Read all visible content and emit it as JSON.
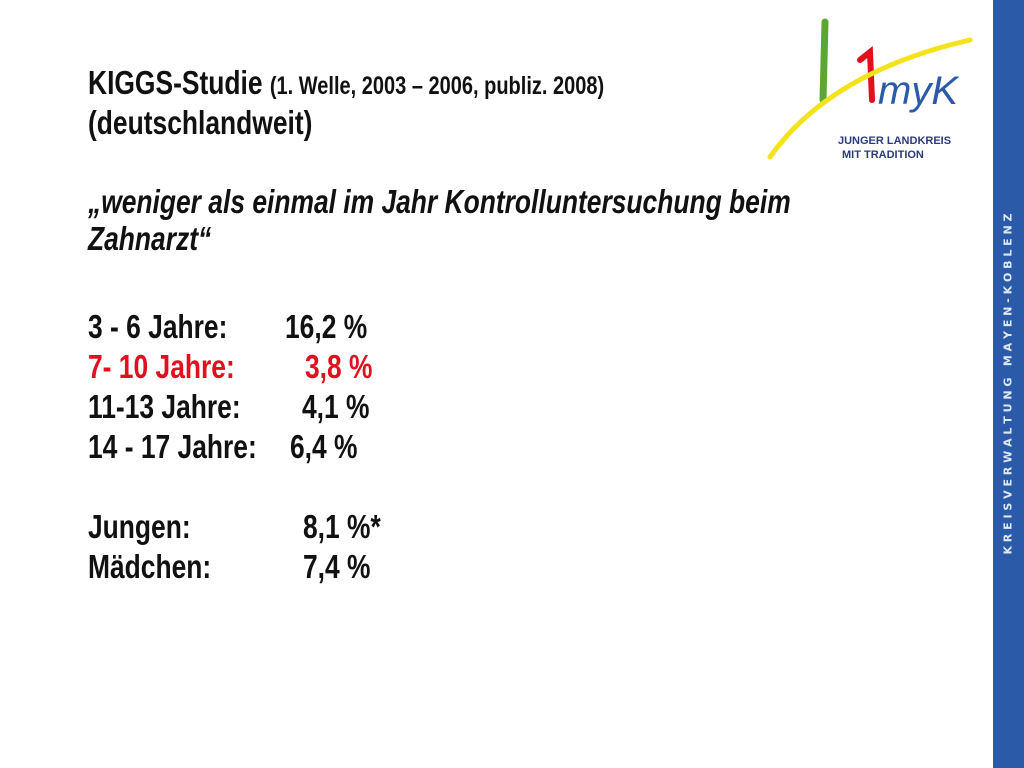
{
  "header": {
    "title": "KIGGS-Studie",
    "subtitle": "(1. Welle, 2003 – 2006, publiz. 2008)",
    "scope": "(deutschlandweit)"
  },
  "quote": [
    "„weniger als einmal im Jahr Kontrolluntersuchung beim",
    "Zahnarzt“"
  ],
  "age_rows": [
    [
      "3 - 6 Jahre:",
      "16,2 %"
    ],
    [
      "7- 10 Jahre:",
      "3,8 %"
    ],
    [
      "11-13 Jahre:",
      "4,1 %"
    ],
    [
      "14 - 17 Jahre:",
      "6,4 %"
    ]
  ],
  "gender_rows": [
    [
      "Jungen:",
      "8,1 %*"
    ],
    [
      "Mädchen:",
      "7,4 %"
    ]
  ],
  "logo": {
    "mark": "myK",
    "lines": [
      "JUNGER LANDKREIS",
      "MIT TRADITION"
    ]
  },
  "sidebar": "K R E I S V E R W A L T U N G   M A Y E N - K O B L E N Z"
}
